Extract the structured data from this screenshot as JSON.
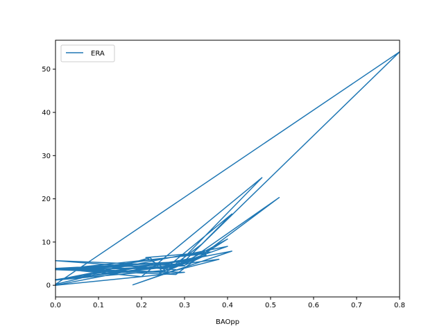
{
  "chart_data": {
    "type": "line",
    "title": "",
    "xlabel": "BAOpp",
    "ylabel": "",
    "xlim": [
      0.0,
      0.8
    ],
    "ylim": [
      -2.7,
      56.7
    ],
    "x_ticks": [
      "0.0",
      "0.1",
      "0.2",
      "0.3",
      "0.4",
      "0.5",
      "0.6",
      "0.7",
      "0.8"
    ],
    "y_ticks": [
      "0",
      "10",
      "20",
      "30",
      "40",
      "50"
    ],
    "grid": false,
    "legend": {
      "position": "top-left"
    },
    "series": [
      {
        "name": "ERA",
        "color": "#1f77b4",
        "points": [
          [
            0.0,
            1.3
          ],
          [
            0.33,
            6.3
          ],
          [
            0.4,
            10.7
          ],
          [
            0.25,
            2.7
          ],
          [
            0.38,
            6.0
          ],
          [
            0.0,
            1.2
          ],
          [
            0.4,
            9.0
          ],
          [
            0.3,
            5.5
          ],
          [
            0.0,
            3.6
          ],
          [
            0.25,
            3.0
          ],
          [
            0.22,
            6.4
          ],
          [
            0.05,
            1.6
          ],
          [
            0.35,
            6.8
          ],
          [
            0.25,
            4.0
          ],
          [
            0.0,
            3.8
          ],
          [
            0.3,
            3.0
          ],
          [
            0.0,
            0.0
          ],
          [
            0.41,
            7.9
          ],
          [
            0.18,
            0.1
          ],
          [
            0.28,
            3.6
          ],
          [
            0.0,
            5.7
          ],
          [
            0.3,
            4.5
          ],
          [
            0.05,
            3.5
          ],
          [
            0.36,
            7.7
          ],
          [
            0.21,
            6.4
          ],
          [
            0.26,
            3.6
          ],
          [
            0.35,
            7.3
          ],
          [
            0.0,
            3.6
          ],
          [
            0.28,
            2.5
          ],
          [
            0.52,
            20.3
          ],
          [
            0.3,
            5.0
          ],
          [
            0.0,
            3.6
          ],
          [
            0.26,
            4.0
          ],
          [
            0.3,
            5.5
          ],
          [
            0.0,
            3.9
          ],
          [
            0.2,
            2.0
          ],
          [
            0.48,
            24.9
          ],
          [
            0.28,
            4.5
          ],
          [
            0.0,
            1.2
          ],
          [
            0.26,
            3.5
          ],
          [
            0.34,
            9.5
          ],
          [
            0.41,
            16.5
          ],
          [
            0.24,
            2.6
          ],
          [
            0.3,
            5.6
          ],
          [
            0.8,
            54.0
          ],
          [
            0.0,
            0.2
          ],
          [
            0.09,
            2.4
          ],
          [
            0.3,
            4.6
          ],
          [
            0.35,
            7.0
          ],
          [
            0.27,
            3.8
          ]
        ]
      }
    ]
  }
}
